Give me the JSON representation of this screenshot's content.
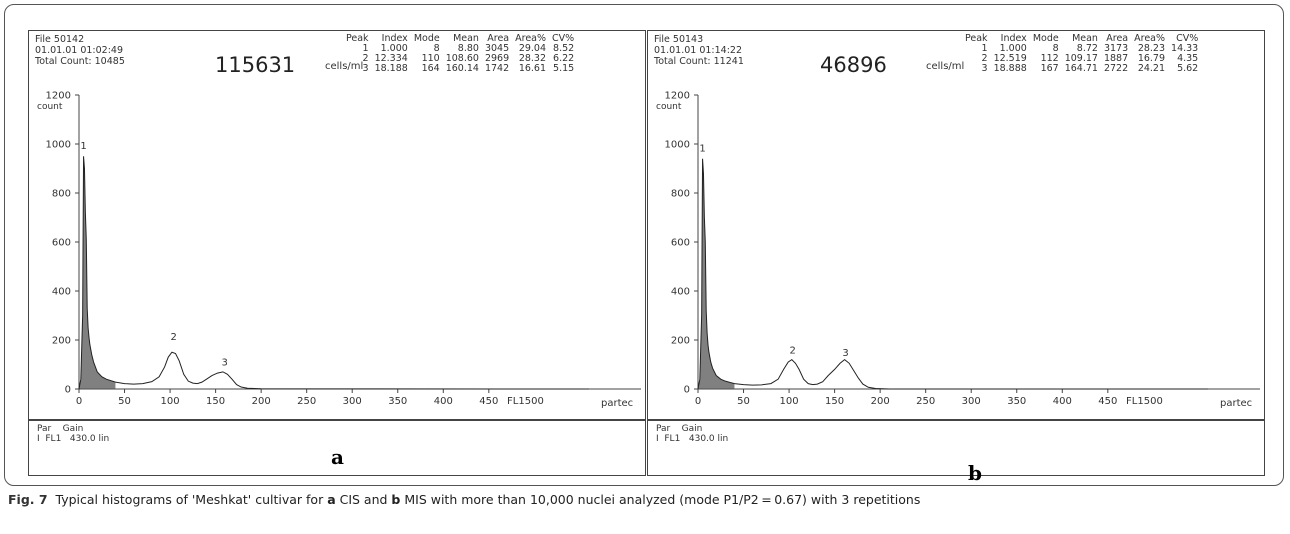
{
  "panels": [
    {
      "file": "File 50142",
      "datetime": "01.01.01 01:02:49",
      "total_count": "Total Count: 10485",
      "big_number": "115631",
      "unit": "cells/ml",
      "peak_headers": [
        "Peak",
        "Index",
        "Mode",
        "Mean",
        "Area",
        "Area%",
        "CV%"
      ],
      "peak_rows": [
        [
          "1",
          "1.000",
          "8",
          "8.80",
          "3045",
          "29.04",
          "8.52"
        ],
        [
          "2",
          "12.334",
          "110",
          "108.60",
          "2969",
          "28.32",
          "6.22"
        ],
        [
          "3",
          "18.188",
          "164",
          "160.14",
          "1742",
          "16.61",
          "5.15"
        ]
      ],
      "footer_line1": "Par    Gain",
      "footer_line2": "I  FL1   430.0 lin",
      "panel_letter": "a"
    },
    {
      "file": "File 50143",
      "datetime": "01.01.01 01:14:22",
      "total_count": "Total Count: 11241",
      "big_number": "46896",
      "unit": "cells/ml",
      "peak_headers": [
        "Peak",
        "Index",
        "Mode",
        "Mean",
        "Area",
        "Area%",
        "CV%"
      ],
      "peak_rows": [
        [
          "1",
          "1.000",
          "8",
          "8.72",
          "3173",
          "28.23",
          "14.33"
        ],
        [
          "2",
          "12.519",
          "112",
          "109.17",
          "1887",
          "16.79",
          "4.35"
        ],
        [
          "3",
          "18.888",
          "167",
          "164.71",
          "2722",
          "24.21",
          "5.62"
        ]
      ],
      "footer_line1": "Par    Gain",
      "footer_line2": "I  FL1   430.0 lin",
      "panel_letter": "b"
    }
  ],
  "caption": {
    "fig": "Fig. 7",
    "t1": "  Typical histograms of 'Meshkat' cultivar for ",
    "a": "a",
    "t2": " CIS and ",
    "b": "b",
    "t3": " MIS with more than 10,000 nuclei analyzed (mode P1/P2 = 0.67) with 3 repetitions"
  },
  "chart_data": [
    {
      "type": "area",
      "ylabel": "count",
      "xlabel": "FL1500",
      "x_extra_label": "partec",
      "xlim": [
        0,
        560
      ],
      "ylim": [
        0,
        1200
      ],
      "x_ticks": [
        0,
        50,
        100,
        150,
        200,
        250,
        300,
        350,
        400,
        450
      ],
      "y_ticks": [
        0,
        200,
        400,
        600,
        800,
        1000,
        1200
      ],
      "peak_labels": [
        {
          "text": "1",
          "x": 5,
          "y": 980
        },
        {
          "text": "2",
          "x": 104,
          "y": 200
        },
        {
          "text": "3",
          "x": 160,
          "y": 95
        }
      ],
      "points": [
        [
          0,
          0
        ],
        [
          2,
          40
        ],
        [
          4,
          300
        ],
        [
          5,
          950
        ],
        [
          6,
          900
        ],
        [
          7,
          720
        ],
        [
          8,
          610
        ],
        [
          9,
          330
        ],
        [
          10,
          250
        ],
        [
          11,
          210
        ],
        [
          12,
          180
        ],
        [
          14,
          140
        ],
        [
          16,
          110
        ],
        [
          18,
          90
        ],
        [
          20,
          70
        ],
        [
          25,
          50
        ],
        [
          30,
          40
        ],
        [
          40,
          28
        ],
        [
          50,
          22
        ],
        [
          60,
          20
        ],
        [
          70,
          22
        ],
        [
          80,
          30
        ],
        [
          88,
          50
        ],
        [
          94,
          90
        ],
        [
          98,
          130
        ],
        [
          102,
          150
        ],
        [
          106,
          145
        ],
        [
          110,
          115
        ],
        [
          115,
          60
        ],
        [
          120,
          32
        ],
        [
          125,
          24
        ],
        [
          130,
          22
        ],
        [
          135,
          28
        ],
        [
          140,
          40
        ],
        [
          146,
          55
        ],
        [
          152,
          65
        ],
        [
          158,
          70
        ],
        [
          163,
          60
        ],
        [
          168,
          40
        ],
        [
          173,
          18
        ],
        [
          178,
          8
        ],
        [
          185,
          3
        ],
        [
          200,
          1
        ],
        [
          560,
          0
        ]
      ]
    },
    {
      "type": "area",
      "ylabel": "count",
      "xlabel": "FL1500",
      "x_extra_label": "partec",
      "xlim": [
        0,
        560
      ],
      "ylim": [
        0,
        1200
      ],
      "x_ticks": [
        0,
        50,
        100,
        150,
        200,
        250,
        300,
        350,
        400,
        450
      ],
      "y_ticks": [
        0,
        200,
        400,
        600,
        800,
        1000,
        1200
      ],
      "peak_labels": [
        {
          "text": "1",
          "x": 5,
          "y": 970
        },
        {
          "text": "2",
          "x": 104,
          "y": 145
        },
        {
          "text": "3",
          "x": 162,
          "y": 135
        }
      ],
      "points": [
        [
          0,
          0
        ],
        [
          2,
          40
        ],
        [
          4,
          300
        ],
        [
          5,
          940
        ],
        [
          6,
          880
        ],
        [
          7,
          700
        ],
        [
          8,
          600
        ],
        [
          9,
          320
        ],
        [
          10,
          230
        ],
        [
          11,
          180
        ],
        [
          12,
          150
        ],
        [
          14,
          110
        ],
        [
          16,
          85
        ],
        [
          18,
          70
        ],
        [
          20,
          55
        ],
        [
          25,
          40
        ],
        [
          30,
          32
        ],
        [
          40,
          22
        ],
        [
          50,
          18
        ],
        [
          60,
          16
        ],
        [
          70,
          17
        ],
        [
          80,
          22
        ],
        [
          88,
          40
        ],
        [
          94,
          80
        ],
        [
          99,
          110
        ],
        [
          103,
          120
        ],
        [
          107,
          105
        ],
        [
          111,
          80
        ],
        [
          116,
          40
        ],
        [
          121,
          22
        ],
        [
          126,
          18
        ],
        [
          131,
          20
        ],
        [
          137,
          30
        ],
        [
          143,
          55
        ],
        [
          150,
          80
        ],
        [
          156,
          105
        ],
        [
          161,
          120
        ],
        [
          166,
          105
        ],
        [
          171,
          75
        ],
        [
          176,
          45
        ],
        [
          181,
          20
        ],
        [
          187,
          7
        ],
        [
          195,
          2
        ],
        [
          210,
          0
        ],
        [
          560,
          0
        ]
      ]
    }
  ]
}
